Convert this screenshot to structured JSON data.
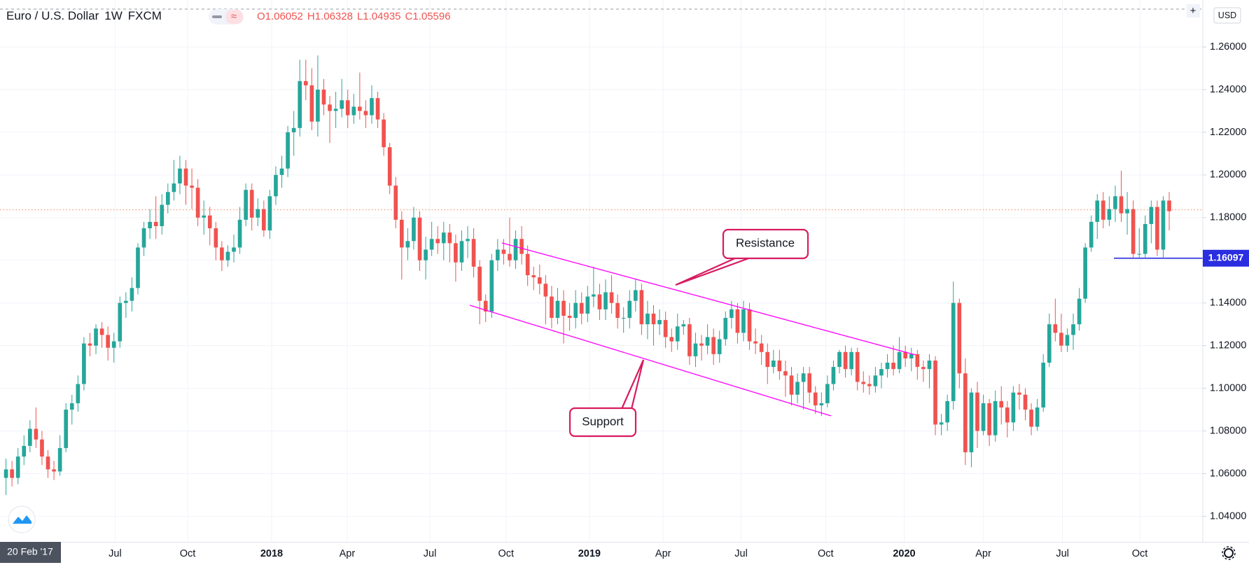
{
  "chart_data": {
    "type": "candlestick",
    "symbol": "Euro / U.S. Dollar",
    "interval": "1W",
    "exchange": "FXCM",
    "ohlc_legend": [
      "O1.06052",
      "H1.06328",
      "L1.04935",
      "C1.05596"
    ],
    "currency": "USD",
    "first_date_label": "20 Feb '17",
    "up_color": "#26a69a",
    "down_color": "#ef5350",
    "grid": true,
    "xlim": [
      -1,
      199.6
    ],
    "xticks": [
      {
        "value": 18.2,
        "label": "Jul"
      },
      {
        "value": 30.3,
        "label": "Oct"
      },
      {
        "value": 44.3,
        "label": "2018"
      },
      {
        "value": 56.9,
        "label": "Apr"
      },
      {
        "value": 70.7,
        "label": "Jul"
      },
      {
        "value": 83.4,
        "label": "Oct"
      },
      {
        "value": 97.3,
        "label": "2019"
      },
      {
        "value": 109.6,
        "label": "Apr"
      },
      {
        "value": 122.6,
        "label": "Jul"
      },
      {
        "value": 136.7,
        "label": "Oct"
      },
      {
        "value": 149.8,
        "label": "2020"
      },
      {
        "value": 163.0,
        "label": "Apr"
      },
      {
        "value": 176.2,
        "label": "Jul"
      },
      {
        "value": 189.1,
        "label": "Oct"
      }
    ],
    "ylim": [
      1.028,
      1.282
    ],
    "yticks": [
      {
        "value": 1.04,
        "label": "1.04000"
      },
      {
        "value": 1.06,
        "label": "1.06000"
      },
      {
        "value": 1.08,
        "label": "1.08000"
      },
      {
        "value": 1.1,
        "label": "1.10000"
      },
      {
        "value": 1.12,
        "label": "1.12000"
      },
      {
        "value": 1.14,
        "label": "1.14000"
      },
      {
        "value": 1.16,
        "label": "1.16000"
      },
      {
        "value": 1.18,
        "label": "1.18000"
      },
      {
        "value": 1.2,
        "label": "1.20000"
      },
      {
        "value": 1.22,
        "label": "1.22000"
      },
      {
        "value": 1.24,
        "label": "1.24000"
      },
      {
        "value": 1.26,
        "label": "1.26000"
      }
    ],
    "horizontal_line": {
      "value": 1.16097,
      "color": "#2a2ee0"
    },
    "current_price_line": {
      "value": 1.1837,
      "color": "#f5a17a"
    },
    "annotations": [
      "Resistance",
      "Support"
    ],
    "open": [
      1.058,
      1.062,
      1.058,
      1.068,
      1.073,
      1.081,
      1.076,
      1.068,
      1.062,
      1.061,
      1.072,
      1.09,
      1.093,
      1.102,
      1.121,
      1.12,
      1.128,
      1.125,
      1.119,
      1.122,
      1.14,
      1.141,
      1.147,
      1.166,
      1.175,
      1.178,
      1.176,
      1.186,
      1.192,
      1.196,
      1.203,
      1.195,
      1.194,
      1.18,
      1.181,
      1.175,
      1.166,
      1.16,
      1.164,
      1.166,
      1.179,
      1.193,
      1.18,
      1.184,
      1.174,
      1.19,
      1.2,
      1.203,
      1.22,
      1.222,
      1.244,
      1.242,
      1.225,
      1.24,
      1.233,
      1.23,
      1.231,
      1.235,
      1.228,
      1.232,
      1.23,
      1.228,
      1.236,
      1.226,
      1.213,
      1.195,
      1.179,
      1.166,
      1.169,
      1.18,
      1.16,
      1.165,
      1.17,
      1.168,
      1.173,
      1.168,
      1.159,
      1.169,
      1.17,
      1.157,
      1.141,
      1.136,
      1.16,
      1.165,
      1.163,
      1.16,
      1.17,
      1.163,
      1.153,
      1.152,
      1.149,
      1.143,
      1.133,
      1.141,
      1.134,
      1.133,
      1.14,
      1.135,
      1.143,
      1.144,
      1.137,
      1.145,
      1.14,
      1.133,
      1.133,
      1.141,
      1.146,
      1.13,
      1.135,
      1.13,
      1.132,
      1.124,
      1.122,
      1.129,
      1.13,
      1.115,
      1.121,
      1.12,
      1.124,
      1.116,
      1.123,
      1.133,
      1.137,
      1.126,
      1.137,
      1.122,
      1.121,
      1.117,
      1.11,
      1.113,
      1.108,
      1.106,
      1.097,
      1.103,
      1.107,
      1.098,
      1.092,
      1.093,
      1.102,
      1.11,
      1.117,
      1.109,
      1.117,
      1.103,
      1.102,
      1.101,
      1.106,
      1.109,
      1.112,
      1.109,
      1.117,
      1.114,
      1.116,
      1.11,
      1.109,
      1.113,
      1.083,
      1.084,
      1.094,
      1.14,
      1.107,
      1.07,
      1.098,
      1.08,
      1.093,
      1.078,
      1.094,
      1.091,
      1.084,
      1.098,
      1.097,
      1.09,
      1.082,
      1.091,
      1.112,
      1.13,
      1.126,
      1.12,
      1.125,
      1.13,
      1.142,
      1.166,
      1.178,
      1.188,
      1.179,
      1.184,
      1.19,
      1.182,
      1.184,
      1.163,
      1.163,
      1.177,
      1.185,
      1.165,
      1.188
    ],
    "high": [
      1.067,
      1.066,
      1.072,
      1.078,
      1.085,
      1.091,
      1.08,
      1.071,
      1.066,
      1.078,
      1.093,
      1.097,
      1.106,
      1.124,
      1.126,
      1.13,
      1.131,
      1.129,
      1.126,
      1.143,
      1.145,
      1.152,
      1.168,
      1.178,
      1.184,
      1.19,
      1.191,
      1.196,
      1.207,
      1.209,
      1.207,
      1.203,
      1.198,
      1.188,
      1.185,
      1.178,
      1.169,
      1.167,
      1.172,
      1.185,
      1.196,
      1.196,
      1.189,
      1.188,
      1.193,
      1.204,
      1.209,
      1.223,
      1.23,
      1.254,
      1.254,
      1.25,
      1.256,
      1.245,
      1.237,
      1.239,
      1.245,
      1.24,
      1.238,
      1.248,
      1.235,
      1.242,
      1.239,
      1.229,
      1.215,
      1.199,
      1.183,
      1.175,
      1.185,
      1.183,
      1.171,
      1.178,
      1.176,
      1.178,
      1.177,
      1.172,
      1.174,
      1.176,
      1.175,
      1.16,
      1.144,
      1.163,
      1.17,
      1.17,
      1.18,
      1.174,
      1.176,
      1.167,
      1.157,
      1.158,
      1.153,
      1.148,
      1.147,
      1.146,
      1.14,
      1.146,
      1.145,
      1.148,
      1.157,
      1.149,
      1.151,
      1.153,
      1.144,
      1.138,
      1.146,
      1.151,
      1.149,
      1.141,
      1.139,
      1.137,
      1.136,
      1.128,
      1.135,
      1.132,
      1.133,
      1.126,
      1.125,
      1.13,
      1.128,
      1.127,
      1.136,
      1.141,
      1.14,
      1.141,
      1.14,
      1.128,
      1.125,
      1.121,
      1.118,
      1.118,
      1.113,
      1.11,
      1.107,
      1.11,
      1.11,
      1.101,
      1.098,
      1.106,
      1.113,
      1.118,
      1.12,
      1.119,
      1.119,
      1.108,
      1.106,
      1.11,
      1.112,
      1.116,
      1.12,
      1.124,
      1.12,
      1.119,
      1.118,
      1.113,
      1.116,
      1.115,
      1.088,
      1.097,
      1.15,
      1.142,
      1.114,
      1.1,
      1.103,
      1.097,
      1.095,
      1.099,
      1.101,
      1.094,
      1.101,
      1.102,
      1.1,
      1.093,
      1.095,
      1.116,
      1.135,
      1.142,
      1.135,
      1.128,
      1.135,
      1.147,
      1.168,
      1.181,
      1.191,
      1.192,
      1.19,
      1.195,
      1.202,
      1.192,
      1.188,
      1.175,
      1.181,
      1.188,
      1.188,
      1.19,
      1.192
    ],
    "low": [
      1.05,
      1.054,
      1.055,
      1.064,
      1.07,
      1.072,
      1.064,
      1.058,
      1.057,
      1.059,
      1.07,
      1.083,
      1.089,
      1.099,
      1.115,
      1.116,
      1.119,
      1.113,
      1.112,
      1.119,
      1.133,
      1.136,
      1.144,
      1.162,
      1.17,
      1.17,
      1.172,
      1.182,
      1.188,
      1.191,
      1.186,
      1.184,
      1.176,
      1.172,
      1.167,
      1.16,
      1.155,
      1.157,
      1.159,
      1.163,
      1.176,
      1.174,
      1.176,
      1.171,
      1.17,
      1.186,
      1.194,
      1.199,
      1.209,
      1.218,
      1.235,
      1.221,
      1.218,
      1.228,
      1.215,
      1.222,
      1.227,
      1.222,
      1.224,
      1.226,
      1.222,
      1.224,
      1.222,
      1.209,
      1.191,
      1.175,
      1.151,
      1.16,
      1.165,
      1.155,
      1.151,
      1.162,
      1.163,
      1.16,
      1.159,
      1.15,
      1.155,
      1.161,
      1.152,
      1.13,
      1.131,
      1.133,
      1.155,
      1.158,
      1.157,
      1.156,
      1.158,
      1.148,
      1.146,
      1.144,
      1.13,
      1.128,
      1.13,
      1.121,
      1.127,
      1.128,
      1.13,
      1.131,
      1.138,
      1.132,
      1.132,
      1.135,
      1.128,
      1.126,
      1.128,
      1.136,
      1.125,
      1.123,
      1.12,
      1.125,
      1.119,
      1.117,
      1.118,
      1.125,
      1.111,
      1.11,
      1.113,
      1.116,
      1.111,
      1.112,
      1.12,
      1.128,
      1.121,
      1.122,
      1.118,
      1.116,
      1.111,
      1.102,
      1.107,
      1.104,
      1.096,
      1.092,
      1.093,
      1.09,
      1.093,
      1.088,
      1.087,
      1.091,
      1.099,
      1.107,
      1.105,
      1.106,
      1.099,
      1.098,
      1.097,
      1.098,
      1.1,
      1.105,
      1.106,
      1.107,
      1.11,
      1.108,
      1.104,
      1.103,
      1.1,
      1.078,
      1.078,
      1.08,
      1.09,
      1.1,
      1.064,
      1.063,
      1.072,
      1.078,
      1.073,
      1.075,
      1.083,
      1.077,
      1.08,
      1.09,
      1.085,
      1.078,
      1.08,
      1.089,
      1.11,
      1.122,
      1.117,
      1.117,
      1.118,
      1.127,
      1.14,
      1.164,
      1.17,
      1.175,
      1.176,
      1.178,
      1.178,
      1.172,
      1.161,
      1.161,
      1.161,
      1.168,
      1.162,
      1.161,
      1.174
    ],
    "close": [
      1.062,
      1.058,
      1.068,
      1.073,
      1.081,
      1.076,
      1.068,
      1.062,
      1.061,
      1.072,
      1.09,
      1.093,
      1.102,
      1.121,
      1.12,
      1.128,
      1.125,
      1.119,
      1.122,
      1.14,
      1.141,
      1.147,
      1.166,
      1.175,
      1.178,
      1.176,
      1.186,
      1.192,
      1.196,
      1.203,
      1.195,
      1.194,
      1.18,
      1.181,
      1.175,
      1.166,
      1.16,
      1.164,
      1.166,
      1.179,
      1.193,
      1.18,
      1.184,
      1.174,
      1.19,
      1.2,
      1.203,
      1.22,
      1.222,
      1.244,
      1.242,
      1.225,
      1.24,
      1.233,
      1.23,
      1.231,
      1.235,
      1.228,
      1.232,
      1.23,
      1.228,
      1.236,
      1.226,
      1.213,
      1.195,
      1.179,
      1.166,
      1.169,
      1.18,
      1.16,
      1.165,
      1.17,
      1.168,
      1.173,
      1.168,
      1.159,
      1.169,
      1.17,
      1.157,
      1.141,
      1.136,
      1.16,
      1.165,
      1.163,
      1.16,
      1.17,
      1.163,
      1.153,
      1.152,
      1.149,
      1.143,
      1.133,
      1.141,
      1.134,
      1.133,
      1.14,
      1.135,
      1.143,
      1.144,
      1.137,
      1.145,
      1.14,
      1.133,
      1.133,
      1.141,
      1.146,
      1.13,
      1.135,
      1.13,
      1.132,
      1.124,
      1.122,
      1.129,
      1.13,
      1.115,
      1.121,
      1.12,
      1.124,
      1.116,
      1.123,
      1.133,
      1.137,
      1.126,
      1.137,
      1.122,
      1.121,
      1.117,
      1.11,
      1.113,
      1.108,
      1.106,
      1.097,
      1.103,
      1.107,
      1.098,
      1.092,
      1.093,
      1.102,
      1.11,
      1.117,
      1.109,
      1.117,
      1.103,
      1.102,
      1.101,
      1.106,
      1.109,
      1.112,
      1.109,
      1.117,
      1.114,
      1.116,
      1.11,
      1.109,
      1.113,
      1.083,
      1.084,
      1.094,
      1.14,
      1.107,
      1.07,
      1.098,
      1.08,
      1.093,
      1.078,
      1.094,
      1.091,
      1.084,
      1.098,
      1.097,
      1.09,
      1.082,
      1.091,
      1.112,
      1.13,
      1.126,
      1.12,
      1.125,
      1.13,
      1.142,
      1.166,
      1.178,
      1.188,
      1.179,
      1.184,
      1.19,
      1.182,
      1.184,
      1.163,
      1.163,
      1.177,
      1.185,
      1.165,
      1.188,
      1.183
    ]
  }
}
